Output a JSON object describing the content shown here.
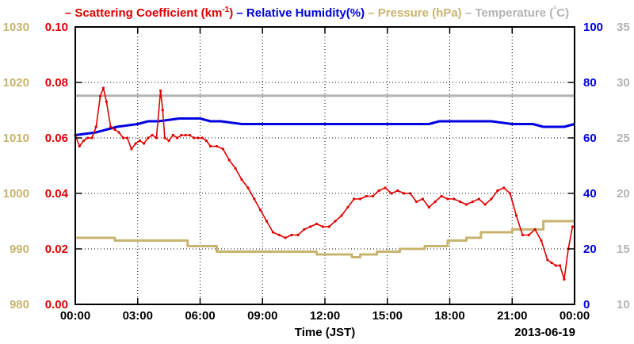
{
  "chart_data": {
    "type": "line",
    "date": "2013-06-19",
    "xlabel": "Time (JST)",
    "x_ticks": [
      "00:00",
      "03:00",
      "06:00",
      "09:00",
      "12:00",
      "15:00",
      "18:00",
      "21:00",
      "00:00"
    ],
    "xlim_hours": [
      0,
      24
    ],
    "grid": true,
    "legend_position": "top",
    "axes": {
      "scattering": {
        "ylim": [
          0,
          0.1
        ],
        "ticks": [
          "0.00",
          "0.02",
          "0.04",
          "0.06",
          "0.08",
          "0.10"
        ],
        "color": "#e00000"
      },
      "pressure": {
        "ylim": [
          980,
          1030
        ],
        "ticks": [
          "980",
          "990",
          "1000",
          "1010",
          "1020",
          "1030"
        ],
        "color": "#c8b46e"
      },
      "humidity": {
        "ylim": [
          0,
          100
        ],
        "ticks": [
          "0",
          "20",
          "40",
          "60",
          "80",
          "100"
        ],
        "color": "#0000e0"
      },
      "temperature": {
        "ylim": [
          10,
          35
        ],
        "ticks": [
          "10",
          "15",
          "20",
          "25",
          "30",
          "35"
        ],
        "color": "#b4b4b4"
      }
    },
    "legend": [
      {
        "key": "scattering",
        "prefix": "– Scattering Coefficient (km",
        "sup": "-1",
        "suffix": ")",
        "color": "#e00000"
      },
      {
        "key": "humidity",
        "prefix": "– Relative Humidity(%)",
        "sup": "",
        "suffix": "",
        "color": "#0000e0"
      },
      {
        "key": "pressure",
        "prefix": "– Pressure (hPa)",
        "sup": "",
        "suffix": "",
        "color": "#c8b46e"
      },
      {
        "key": "temperature",
        "prefix": "– Temperature (",
        "sup": "°",
        "suffix": "C)",
        "color": "#b4b4b4"
      }
    ],
    "series": [
      {
        "name": "Scattering Coefficient (km-1)",
        "axis": "scattering",
        "color": "#e00000",
        "x": [
          0,
          0.2,
          0.4,
          0.6,
          0.8,
          1.0,
          1.2,
          1.35,
          1.5,
          1.7,
          1.9,
          2.1,
          2.3,
          2.5,
          2.7,
          2.9,
          3.1,
          3.3,
          3.5,
          3.7,
          3.9,
          4.1,
          4.2,
          4.3,
          4.5,
          4.7,
          4.9,
          5.1,
          5.3,
          5.5,
          5.7,
          5.9,
          6.1,
          6.3,
          6.5,
          6.8,
          7.1,
          7.4,
          7.7,
          8.0,
          8.3,
          8.6,
          8.9,
          9.2,
          9.5,
          9.8,
          10.1,
          10.4,
          10.7,
          11.0,
          11.3,
          11.6,
          11.9,
          12.2,
          12.5,
          12.8,
          13.1,
          13.4,
          13.7,
          14.0,
          14.3,
          14.6,
          14.9,
          15.2,
          15.5,
          15.8,
          16.1,
          16.4,
          16.7,
          17.0,
          17.3,
          17.6,
          17.9,
          18.2,
          18.5,
          18.8,
          19.1,
          19.4,
          19.7,
          20.0,
          20.3,
          20.6,
          20.9,
          21.2,
          21.5,
          21.8,
          22.1,
          22.4,
          22.7,
          22.9,
          23.1,
          23.3,
          23.5,
          23.7,
          23.9
        ],
        "y": [
          0.061,
          0.057,
          0.059,
          0.06,
          0.06,
          0.064,
          0.075,
          0.078,
          0.073,
          0.064,
          0.063,
          0.062,
          0.06,
          0.06,
          0.056,
          0.058,
          0.059,
          0.058,
          0.06,
          0.061,
          0.06,
          0.077,
          0.07,
          0.06,
          0.059,
          0.061,
          0.06,
          0.061,
          0.061,
          0.061,
          0.06,
          0.06,
          0.06,
          0.059,
          0.057,
          0.057,
          0.056,
          0.052,
          0.049,
          0.045,
          0.042,
          0.038,
          0.034,
          0.03,
          0.026,
          0.025,
          0.024,
          0.025,
          0.025,
          0.027,
          0.028,
          0.029,
          0.028,
          0.028,
          0.03,
          0.032,
          0.035,
          0.038,
          0.038,
          0.039,
          0.039,
          0.041,
          0.042,
          0.04,
          0.041,
          0.04,
          0.04,
          0.037,
          0.038,
          0.035,
          0.037,
          0.039,
          0.038,
          0.038,
          0.037,
          0.036,
          0.037,
          0.038,
          0.036,
          0.038,
          0.041,
          0.042,
          0.04,
          0.032,
          0.025,
          0.025,
          0.027,
          0.023,
          0.016,
          0.015,
          0.014,
          0.014,
          0.009,
          0.02,
          0.028
        ]
      },
      {
        "name": "Relative Humidity(%)",
        "axis": "humidity",
        "color": "#0000e0",
        "x": [
          0,
          1.0,
          1.5,
          2.0,
          3.0,
          3.5,
          4.0,
          5.0,
          5.5,
          6.0,
          6.5,
          7.0,
          8.0,
          9.0,
          10.0,
          11.0,
          12.0,
          13.0,
          14.0,
          15.0,
          16.0,
          17.0,
          17.5,
          18.0,
          19.0,
          20.0,
          21.0,
          22.0,
          22.5,
          23.0,
          23.5,
          24.0
        ],
        "y": [
          61,
          62,
          63,
          64,
          65,
          66,
          66,
          67,
          67,
          67,
          66,
          66,
          65,
          65,
          65,
          65,
          65,
          65,
          65,
          65,
          65,
          65,
          66,
          66,
          66,
          66,
          65,
          65,
          64,
          64,
          64,
          65
        ]
      },
      {
        "name": "Pressure (hPa)",
        "axis": "pressure",
        "color": "#c8b46e",
        "x": [
          0,
          1.9,
          1.9,
          5.4,
          5.4,
          6.8,
          6.8,
          11.6,
          11.6,
          13.3,
          13.3,
          13.7,
          13.7,
          14.5,
          14.5,
          15.6,
          15.6,
          16.8,
          16.8,
          17.9,
          17.9,
          18.8,
          18.8,
          19.5,
          19.5,
          21.0,
          21.0,
          22.5,
          22.5,
          24.0
        ],
        "y": [
          992.0,
          992.0,
          991.5,
          991.5,
          990.5,
          990.5,
          989.5,
          989.5,
          989.0,
          989.0,
          988.5,
          988.5,
          989.0,
          989.0,
          989.5,
          989.5,
          990.0,
          990.0,
          990.5,
          990.5,
          991.5,
          991.5,
          992.0,
          992.0,
          993.0,
          993.0,
          993.5,
          993.5,
          995.0,
          995.0
        ]
      },
      {
        "name": "Temperature (C)",
        "axis": "temperature",
        "color": "#b4b4b4",
        "x": [
          0,
          24
        ],
        "y": [
          28.8,
          28.8
        ]
      }
    ]
  }
}
